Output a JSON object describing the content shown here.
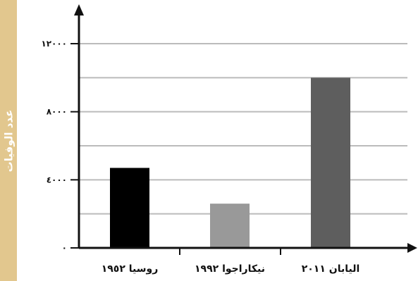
{
  "chart_data": {
    "type": "bar",
    "ylabel": "عدد الوفيات",
    "xlabel": "",
    "title": "",
    "categories": [
      "روسيا ١٩٥٢",
      "نيكاراجوا ١٩٩٢",
      "اليابان ٢٠١١"
    ],
    "values": [
      4700,
      2600,
      10000
    ],
    "ylim": [
      0,
      12000
    ],
    "yticks": [
      0,
      4000,
      8000,
      12000
    ],
    "ytick_labels": [
      "٠",
      "٤٠٠٠",
      "٨٠٠٠",
      "١٢٠٠٠"
    ],
    "grid": true,
    "gridlines": [
      2000,
      4000,
      6000,
      8000,
      10000,
      12000
    ],
    "legend": "none",
    "bar_colors": [
      "#000000",
      "#999999",
      "#5e5e5e"
    ],
    "axis_color": "#111111",
    "grid_color": "#bbbbbb",
    "ylabel_background": "#e2c78e"
  }
}
